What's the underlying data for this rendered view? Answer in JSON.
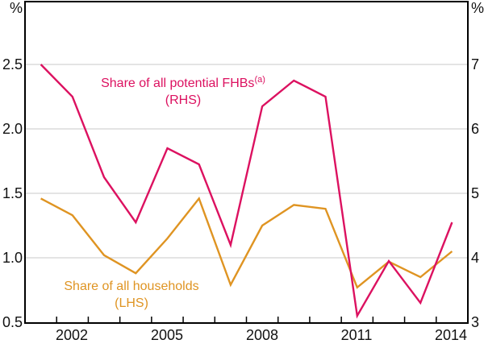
{
  "colors": {
    "frame": "#000000",
    "gridline": "#d3d3d3",
    "axis_text": "#111111",
    "fhb_pink": "#dc1160",
    "households_orange": "#df9422"
  },
  "chart_data": {
    "type": "line",
    "x": [
      2001,
      2002,
      2003,
      2004,
      2005,
      2006,
      2007,
      2008,
      2009,
      2010,
      2011,
      2012,
      2013,
      2014
    ],
    "x_tick_labels": [
      "2002",
      "2005",
      "2008",
      "2011",
      "2014"
    ],
    "left_axis": {
      "unit": "%",
      "tick_labels": [
        "2.5",
        "2.0",
        "1.5",
        "1.0",
        "0.5"
      ],
      "ticks": [
        2.5,
        2.0,
        1.5,
        1.0,
        0.5
      ],
      "min": 0.5,
      "max": 2.5
    },
    "right_axis": {
      "unit": "%",
      "tick_labels": [
        "7",
        "6",
        "5",
        "4",
        "3"
      ],
      "ticks": [
        7,
        6,
        5,
        4,
        3
      ],
      "min": 3,
      "max": 7
    },
    "grid": true,
    "legend_position": "in-plot annotations",
    "series": [
      {
        "name": "Share of all households",
        "axis_note": "(LHS)",
        "axis": "left",
        "color": "#df9422",
        "values": [
          1.46,
          1.33,
          1.02,
          0.88,
          1.15,
          1.46,
          0.79,
          1.25,
          1.41,
          1.38,
          0.77,
          0.97,
          0.85,
          1.05
        ]
      },
      {
        "name": "Share of all potential FHBs",
        "footnote_marker": "(a)",
        "axis_note": "(RHS)",
        "axis": "right",
        "color": "#dc1160",
        "values": [
          7.0,
          6.5,
          5.25,
          4.55,
          5.7,
          5.45,
          4.2,
          6.35,
          6.75,
          6.5,
          3.1,
          3.95,
          3.3,
          4.55
        ]
      }
    ]
  }
}
